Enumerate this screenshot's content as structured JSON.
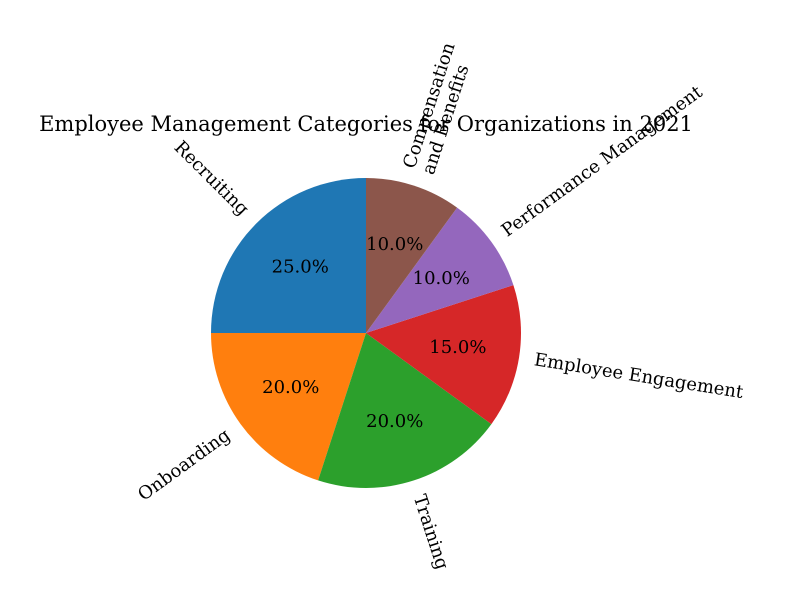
{
  "chart_data": {
    "type": "pie",
    "title": "Employee Management Categories for Organizations in 2021",
    "slices": [
      {
        "label": "Recruiting",
        "value": 25,
        "pct_text": "25.0%",
        "color": "#1f77b4"
      },
      {
        "label": "Onboarding",
        "value": 20,
        "pct_text": "20.0%",
        "color": "#ff7f0e"
      },
      {
        "label": "Training",
        "value": 20,
        "pct_text": "20.0%",
        "color": "#2ca02c"
      },
      {
        "label": "Employee Engagement",
        "value": 15,
        "pct_text": "15.0%",
        "color": "#d62728"
      },
      {
        "label": "Performance Management",
        "value": 10,
        "pct_text": "10.0%",
        "color": "#9467bd"
      },
      {
        "label": "Compensation\nand Benefits",
        "value": 10,
        "pct_text": "10.0%",
        "color": "#8c564b"
      }
    ],
    "start_angle_deg": 90,
    "direction": "counterclockwise",
    "legend": "none"
  }
}
